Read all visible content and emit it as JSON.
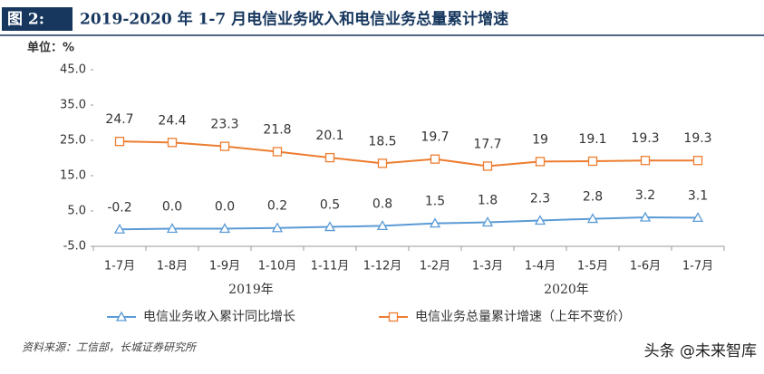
{
  "chart_data": {
    "type": "line",
    "figure_label": "图 2:",
    "title": "2019-2020 年 1-7 月电信业务收入和电信业务总量累计增速",
    "unit": "单位：%",
    "categories": [
      "1-7月",
      "1-8月",
      "1-9月",
      "1-10月",
      "1-11月",
      "1-12月",
      "1-2月",
      "1-3月",
      "1-4月",
      "1-5月",
      "1-6月",
      "1-7月"
    ],
    "x_groups": [
      "2019年",
      "2020年"
    ],
    "series": [
      {
        "name": "电信业务收入累计同比增长",
        "color": "#5b9bd5",
        "marker": "triangle",
        "values": [
          -0.2,
          0.0,
          0.0,
          0.2,
          0.5,
          0.8,
          1.5,
          1.8,
          2.3,
          2.8,
          3.2,
          3.1
        ],
        "value_labels": [
          "-0.2",
          "0.0",
          "0.0",
          "0.2",
          "0.5",
          "0.8",
          "1.5",
          "1.8",
          "2.3",
          "2.8",
          "3.2",
          "3.1"
        ]
      },
      {
        "name": "电信业务总量累计增速（上年不变价）",
        "color": "#ed7d31",
        "marker": "square",
        "values": [
          24.7,
          24.4,
          23.3,
          21.8,
          20.1,
          18.5,
          19.7,
          17.7,
          19,
          19.1,
          19.3,
          19.3
        ]
      }
    ],
    "ylim": [
      -5,
      45
    ],
    "yticks": [
      {
        "value": -5,
        "label": "-5.0"
      },
      {
        "value": 5,
        "label": "5.0"
      },
      {
        "value": 15,
        "label": "15.0"
      },
      {
        "value": 25,
        "label": "25.0"
      },
      {
        "value": 35,
        "label": "35.0"
      },
      {
        "value": 45,
        "label": "45.0"
      }
    ],
    "grid": false,
    "source": "资料来源：工信部，长城证券研究所",
    "watermark": "头条 @未来智库"
  }
}
